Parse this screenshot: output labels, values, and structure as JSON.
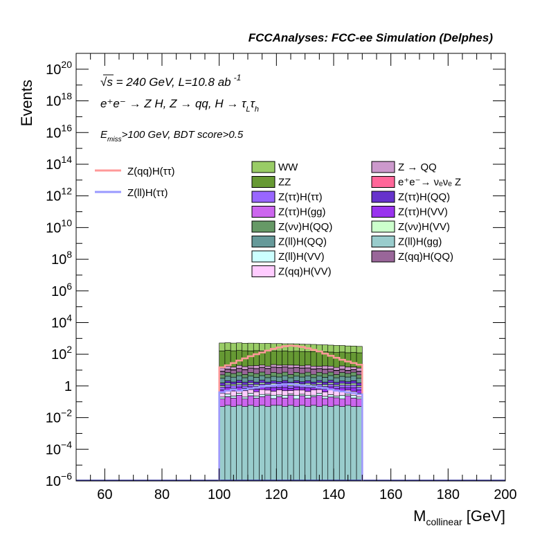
{
  "header": {
    "title": "FCCAnalyses: FCC-ee Simulation (Delphes)",
    "line1_sqrt": "√s",
    "line1_rest": " = 240 GeV, L=10.8 ab",
    "line1_sup": "-1",
    "line2": "e⁺e⁻ → Z H, Z → qq, H → τ",
    "line2_sub1": "L",
    "line2_mid": "τ",
    "line2_sub2": "h",
    "line3_pre": "E",
    "line3_sub": "miss",
    "line3_post": ">100 GeV, BDT score>0.5"
  },
  "chart_data": {
    "type": "bar",
    "subtype": "stacked-histogram",
    "xlabel": "M",
    "xlabel_sub": "collinear",
    "xlabel_unit": " [GeV]",
    "ylabel": "Events",
    "xlim": [
      50,
      200
    ],
    "ylim": [
      1e-06,
      1e+21
    ],
    "yscale": "log",
    "x_ticks": [
      60,
      80,
      100,
      120,
      140,
      160,
      180,
      200
    ],
    "y_ticks": [
      {
        "value": 1e-06,
        "label": "10",
        "exp": "−6"
      },
      {
        "value": 0.0001,
        "label": "10",
        "exp": "−4"
      },
      {
        "value": 0.01,
        "label": "10",
        "exp": "−2"
      },
      {
        "value": 1,
        "label": "1",
        "exp": ""
      },
      {
        "value": 100.0,
        "label": "10",
        "exp": "2"
      },
      {
        "value": 10000.0,
        "label": "10",
        "exp": "4"
      },
      {
        "value": 1000000.0,
        "label": "10",
        "exp": "6"
      },
      {
        "value": 100000000.0,
        "label": "10",
        "exp": "8"
      },
      {
        "value": 10000000000.0,
        "label": "10",
        "exp": "10"
      },
      {
        "value": 1000000000000.0,
        "label": "10",
        "exp": "12"
      },
      {
        "value": 100000000000000.0,
        "label": "10",
        "exp": "14"
      },
      {
        "value": 1e+16,
        "label": "10",
        "exp": "16"
      },
      {
        "value": 1e+18,
        "label": "10",
        "exp": "18"
      },
      {
        "value": 1e+20,
        "label": "10",
        "exp": "20"
      }
    ],
    "bin_edges": [
      100,
      102,
      104,
      106,
      108,
      110,
      112,
      114,
      116,
      118,
      120,
      122,
      124,
      126,
      128,
      130,
      132,
      134,
      136,
      138,
      140,
      142,
      144,
      146,
      148,
      150
    ],
    "stacked_series": [
      {
        "name": "Z(ll)H(gg)",
        "color": "#99cccc",
        "values": [
          0.05,
          0.06,
          0.05,
          0.06,
          0.05,
          0.06,
          0.05,
          0.06,
          0.05,
          0.06,
          0.06,
          0.05,
          0.06,
          0.05,
          0.06,
          0.05,
          0.06,
          0.05,
          0.06,
          0.05,
          0.06,
          0.05,
          0.06,
          0.05,
          0.05
        ]
      },
      {
        "name": "Z(ττ)H(gg)",
        "color": "#cc66ee",
        "values": [
          0.1,
          0.15,
          0.12,
          0.2,
          0.1,
          0.18,
          0.12,
          0.15,
          0.2,
          0.1,
          0.15,
          0.12,
          0.2,
          0.1,
          0.18,
          0.12,
          0.15,
          0.2,
          0.1,
          0.15,
          0.12,
          0.1,
          0.18,
          0.12,
          0.1
        ]
      },
      {
        "name": "Z(ll)H(VV)",
        "color": "#ccffff",
        "values": [
          0.05,
          0.1,
          0.06,
          0.08,
          0.05,
          0.1,
          0.06,
          0.08,
          0.05,
          0.1,
          0.06,
          0.08,
          0.05,
          0.1,
          0.06,
          0.08,
          0.05,
          0.1,
          0.06,
          0.08,
          0.05,
          0.1,
          0.06,
          0.08,
          0.05
        ]
      },
      {
        "name": "Z(qq)H(VV)",
        "color": "#ffccff",
        "values": [
          0.15,
          0.2,
          0.25,
          0.2,
          0.3,
          0.25,
          0.2,
          0.3,
          0.25,
          0.2,
          0.3,
          0.25,
          0.2,
          0.3,
          0.25,
          0.2,
          0.3,
          0.25,
          0.2,
          0.3,
          0.25,
          0.2,
          0.25,
          0.2,
          0.15
        ]
      },
      {
        "name": "Z(ττ)H(VV)",
        "color": "#9933ee",
        "values": [
          0.2,
          0.3,
          0.2,
          0.3,
          0.2,
          0.3,
          0.2,
          0.3,
          0.2,
          0.3,
          0.2,
          0.3,
          0.2,
          0.3,
          0.2,
          0.3,
          0.2,
          0.3,
          0.2,
          0.3,
          0.2,
          0.3,
          0.2,
          0.3,
          0.2
        ]
      },
      {
        "name": "Z(ττ)H(ττ)",
        "color": "#9966ff",
        "values": [
          0.3,
          0.4,
          0.35,
          0.4,
          0.3,
          0.4,
          0.35,
          0.4,
          0.3,
          0.4,
          0.35,
          0.4,
          0.3,
          0.4,
          0.35,
          0.4,
          0.3,
          0.4,
          0.35,
          0.4,
          0.3,
          0.4,
          0.35,
          0.4,
          0.3
        ]
      },
      {
        "name": "Z(νν)H(VV)",
        "color": "#ccffcc",
        "values": [
          0.2,
          0.3,
          0.25,
          0.3,
          0.2,
          0.3,
          0.25,
          0.3,
          0.2,
          0.3,
          0.25,
          0.3,
          0.2,
          0.3,
          0.25,
          0.3,
          0.2,
          0.3,
          0.25,
          0.3,
          0.2,
          0.3,
          0.25,
          0.3,
          0.2
        ]
      },
      {
        "name": "Z(ττ)H(QQ)",
        "color": "#6633cc",
        "values": [
          0.5,
          0.6,
          0.5,
          0.7,
          0.5,
          0.6,
          0.5,
          0.7,
          0.5,
          0.6,
          0.5,
          0.7,
          0.5,
          0.6,
          0.5,
          0.7,
          0.5,
          0.6,
          0.5,
          0.7,
          0.5,
          0.6,
          0.5,
          0.7,
          0.5
        ]
      },
      {
        "name": "Z(ll)H(QQ)",
        "color": "#669999",
        "values": [
          1.5,
          2,
          1.8,
          2.2,
          1.6,
          2,
          1.8,
          2.2,
          1.6,
          2,
          1.8,
          2.2,
          1.6,
          2,
          1.8,
          2.2,
          1.6,
          2,
          1.8,
          2.2,
          1.6,
          2,
          1.8,
          2.2,
          1.5
        ]
      },
      {
        "name": "Z(νν)H(QQ)",
        "color": "#669966",
        "values": [
          2,
          3,
          2.5,
          3,
          2,
          3,
          2.5,
          3,
          2,
          3,
          2.5,
          3,
          2,
          3,
          2.5,
          3,
          2,
          3,
          2.5,
          3,
          2,
          3,
          2.5,
          3,
          2
        ]
      },
      {
        "name": "Z(qq)H(QQ)",
        "color": "#996699",
        "values": [
          3,
          4,
          4,
          5,
          5,
          6,
          6,
          7,
          7,
          8,
          8,
          8,
          8,
          7,
          7,
          6,
          6,
          5,
          5,
          4,
          4,
          4,
          3,
          3,
          3
        ]
      },
      {
        "name": "e⁺e⁻→ νₑνₑ Z",
        "color": "#ff6699",
        "values": [
          0.5,
          0.4,
          0.5,
          0.4,
          0.5,
          0.4,
          0.5,
          0.4,
          0.5,
          0.4,
          0.5,
          0.4,
          0.5,
          0.4,
          0.5,
          0.4,
          0.5,
          0.4,
          0.5,
          0.4,
          0.5,
          0.4,
          0.5,
          0.4,
          0.5
        ]
      },
      {
        "name": "Z → QQ",
        "color": "#cc99cc",
        "values": [
          5,
          6,
          5,
          7,
          6,
          5,
          7,
          6,
          5,
          7,
          6,
          5,
          7,
          6,
          5,
          7,
          6,
          5,
          7,
          6,
          5,
          7,
          6,
          5,
          5
        ]
      },
      {
        "name": "ZZ",
        "color": "#669933",
        "values": [
          150,
          160,
          150,
          155,
          150,
          145,
          150,
          140,
          145,
          140,
          135,
          140,
          130,
          135,
          130,
          125,
          130,
          120,
          125,
          120,
          115,
          120,
          110,
          115,
          110
        ]
      },
      {
        "name": "WW",
        "color": "#99cc66",
        "values": [
          350,
          360,
          340,
          350,
          330,
          340,
          330,
          320,
          330,
          310,
          320,
          300,
          310,
          300,
          290,
          280,
          270,
          260,
          250,
          240,
          230,
          220,
          210,
          200,
          190
        ]
      }
    ],
    "overlay_series": [
      {
        "name": "Z(qq)H(ττ)",
        "color": "#ff9999",
        "values": [
          15,
          20,
          28,
          40,
          55,
          75,
          100,
          130,
          170,
          220,
          270,
          320,
          350,
          330,
          290,
          240,
          190,
          150,
          110,
          80,
          60,
          45,
          35,
          28,
          22
        ]
      },
      {
        "name": "Z(ll)H(ττ)",
        "color": "#9999ff",
        "values": [
          0.4,
          0.5,
          0.6,
          0.5,
          0.6,
          0.7,
          0.8,
          0.9,
          1.0,
          1.1,
          1.2,
          1.3,
          1.3,
          1.2,
          1.1,
          1.0,
          0.9,
          0.8,
          0.7,
          0.6,
          0.5,
          0.45,
          0.4,
          0.35,
          0.3
        ]
      }
    ],
    "legend": {
      "left": [
        {
          "name": "Z(qq)H(ττ)",
          "color": "#ff9999",
          "style": "line"
        },
        {
          "name": "Z(ll)H(ττ)",
          "color": "#9999ff",
          "style": "line"
        }
      ],
      "middle": [
        {
          "name": "WW",
          "color": "#99cc66"
        },
        {
          "name": "ZZ",
          "color": "#669933"
        },
        {
          "name": "Z(ττ)H(ττ)",
          "color": "#9966ff"
        },
        {
          "name": "Z(ττ)H(gg)",
          "color": "#cc66ee"
        },
        {
          "name": "Z(νν)H(QQ)",
          "color": "#669966"
        },
        {
          "name": "Z(ll)H(QQ)",
          "color": "#669999"
        },
        {
          "name": "Z(ll)H(VV)",
          "color": "#ccffff"
        },
        {
          "name": "Z(qq)H(VV)",
          "color": "#ffccff"
        }
      ],
      "right": [
        {
          "name": "Z → QQ",
          "color": "#cc99cc"
        },
        {
          "name": "e⁺e⁻→ νₑνₑ Z",
          "color": "#ff6699"
        },
        {
          "name": "Z(ττ)H(QQ)",
          "color": "#6633cc"
        },
        {
          "name": "Z(ττ)H(VV)",
          "color": "#9933ee"
        },
        {
          "name": "Z(νν)H(VV)",
          "color": "#ccffcc"
        },
        {
          "name": "Z(ll)H(gg)",
          "color": "#99cccc"
        },
        {
          "name": "Z(qq)H(QQ)",
          "color": "#996699"
        }
      ]
    },
    "grid": false,
    "legend_placement": "top"
  }
}
